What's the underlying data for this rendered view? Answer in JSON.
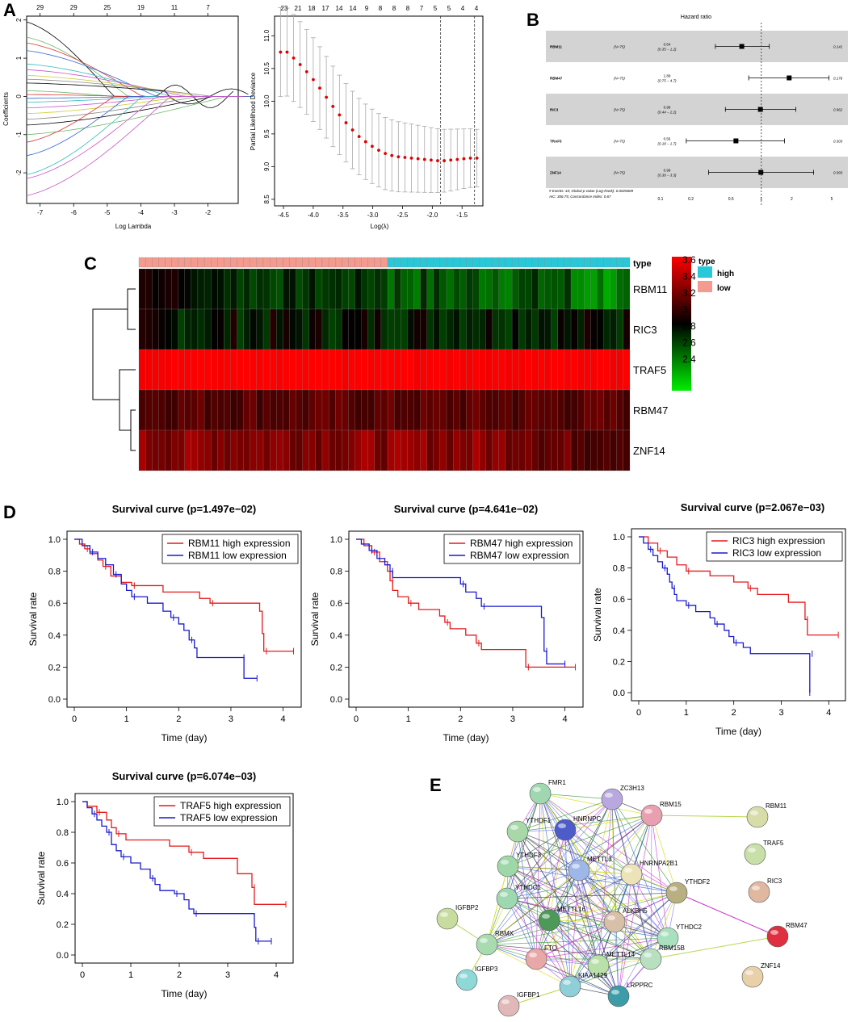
{
  "panel_labels": {
    "a": "A",
    "b": "B",
    "c": "C",
    "d": "D",
    "e": "E"
  },
  "colors": {
    "red": "#e41a1c",
    "blue": "#1a1ad0",
    "high": "#28c8d8",
    "low": "#f49a8e",
    "heat_high": "#ff0000",
    "heat_low": "#00e000",
    "grey_band": "#d3d3d3"
  },
  "panel_a": {
    "coef_plot": {
      "xlabel": "Log Lambda",
      "ylabel": "Coefficients",
      "x_ticks": [
        "-7",
        "-6",
        "-5",
        "-4",
        "-3",
        "-2"
      ],
      "y_ticks": [
        "-2",
        "-1",
        "0",
        "1",
        "2"
      ],
      "top_ticks": [
        "29",
        "29",
        "25",
        "19",
        "11",
        "7"
      ]
    },
    "cv_plot": {
      "xlabel": "Log(λ)",
      "ylabel": "Partial Likelihood Deviance",
      "x_ticks": [
        "-4.5",
        "-4.0",
        "-3.5",
        "-3.0",
        "-2.5",
        "-2.0",
        "-1.5"
      ],
      "y_ticks": [
        "8.5",
        "9.0",
        "9.5",
        "10.0",
        "10.5",
        "11.0"
      ],
      "top_ticks": [
        "23",
        "21",
        "18",
        "17",
        "14",
        "14",
        "9",
        "8",
        "8",
        "8",
        "7",
        "5",
        "5",
        "4",
        "4"
      ],
      "lambda_min": -1.86,
      "lambda_1se": -1.29,
      "points": [
        [
          -4.55,
          10.75
        ],
        [
          -4.44,
          10.75
        ],
        [
          -4.33,
          10.66
        ],
        [
          -4.22,
          10.56
        ],
        [
          -4.11,
          10.45
        ],
        [
          -4.0,
          10.33
        ],
        [
          -3.89,
          10.2
        ],
        [
          -3.78,
          10.06
        ],
        [
          -3.67,
          9.92
        ],
        [
          -3.56,
          9.79
        ],
        [
          -3.45,
          9.67
        ],
        [
          -3.34,
          9.56
        ],
        [
          -3.23,
          9.46
        ],
        [
          -3.12,
          9.38
        ],
        [
          -3.01,
          9.31
        ],
        [
          -2.9,
          9.25
        ],
        [
          -2.79,
          9.2
        ],
        [
          -2.68,
          9.17
        ],
        [
          -2.57,
          9.15
        ],
        [
          -2.46,
          9.14
        ],
        [
          -2.35,
          9.13
        ],
        [
          -2.24,
          9.12
        ],
        [
          -2.13,
          9.11
        ],
        [
          -2.02,
          9.1
        ],
        [
          -1.91,
          9.09
        ],
        [
          -1.8,
          9.09
        ],
        [
          -1.69,
          9.1
        ],
        [
          -1.58,
          9.11
        ],
        [
          -1.47,
          9.12
        ],
        [
          -1.36,
          9.13
        ],
        [
          -1.25,
          9.13
        ]
      ]
    }
  },
  "panel_b": {
    "title": "Hazard ratio",
    "rows": [
      {
        "gene": "RBM11",
        "n": "(N=75)",
        "hr": "0.64",
        "ci": "(0.35 – 1.2)",
        "p": "0.141",
        "est": 0.64,
        "lo": 0.35,
        "hi": 1.2
      },
      {
        "gene": "RBM47",
        "n": "(N=75)",
        "hr": "1.89",
        "ci": "(0.75 – 4.7)",
        "p": "0.176",
        "est": 1.89,
        "lo": 0.75,
        "hi": 4.7
      },
      {
        "gene": "RIC3",
        "n": "(N=75)",
        "hr": "0.98",
        "ci": "(0.44 – 2.2)",
        "p": "0.962",
        "est": 0.98,
        "lo": 0.44,
        "hi": 2.2
      },
      {
        "gene": "TRAF5",
        "n": "(N=75)",
        "hr": "0.56",
        "ci": "(0.18 – 1.7)",
        "p": "0.303",
        "est": 0.56,
        "lo": 0.18,
        "hi": 1.7
      },
      {
        "gene": "ZNF14",
        "n": "(N=75)",
        "hr": "0.99",
        "ci": "(0.30 – 3.3)",
        "p": "0.993",
        "est": 0.99,
        "lo": 0.3,
        "hi": 3.3
      }
    ],
    "footer1": "# Events: 43; Global p-value (Log-Rank): 0.0025609",
    "footer2": "AIC: 306.75; Concordance Index: 0.67",
    "x_ticks": [
      "0.1",
      "0.2",
      "0.5",
      "1",
      "2",
      "5"
    ]
  },
  "panel_c": {
    "type_label": "type",
    "genes": [
      "RBM11",
      "RIC3",
      "TRAF5",
      "RBM47",
      "ZNF14"
    ],
    "scale_ticks": [
      "3.6",
      "3.4",
      "3.2",
      "3",
      "2.8",
      "2.6",
      "2.4"
    ],
    "legend_title": "type",
    "legend_items": [
      "high",
      "low"
    ]
  },
  "panel_d": {
    "xlabel": "Time (day)",
    "ylabel": "Survival rate",
    "x_ticks": [
      "0",
      "1",
      "2",
      "3",
      "4"
    ],
    "y_ticks": [
      "0.0",
      "0.2",
      "0.4",
      "0.6",
      "0.8",
      "1.0"
    ],
    "plots": [
      {
        "title": "Survival curve (p=1.497e−02)",
        "legend_high": "RBM11 high expression",
        "legend_low": "RBM11 low expression",
        "high": [
          [
            0,
            1
          ],
          [
            0.1,
            0.97
          ],
          [
            0.2,
            0.94
          ],
          [
            0.3,
            0.91
          ],
          [
            0.45,
            0.87
          ],
          [
            0.55,
            0.83
          ],
          [
            0.7,
            0.77
          ],
          [
            0.9,
            0.73
          ],
          [
            1.1,
            0.71
          ],
          [
            1.7,
            0.67
          ],
          [
            2.4,
            0.63
          ],
          [
            2.6,
            0.6
          ],
          [
            3.55,
            0.55
          ],
          [
            3.6,
            0.41
          ],
          [
            3.63,
            0.3
          ],
          [
            4.2,
            0.3
          ]
        ],
        "low": [
          [
            0,
            1
          ],
          [
            0.15,
            0.96
          ],
          [
            0.3,
            0.92
          ],
          [
            0.45,
            0.88
          ],
          [
            0.6,
            0.84
          ],
          [
            0.75,
            0.78
          ],
          [
            0.9,
            0.72
          ],
          [
            1.0,
            0.68
          ],
          [
            1.1,
            0.64
          ],
          [
            1.4,
            0.6
          ],
          [
            1.7,
            0.55
          ],
          [
            1.85,
            0.51
          ],
          [
            2.0,
            0.47
          ],
          [
            2.1,
            0.43
          ],
          [
            2.2,
            0.37
          ],
          [
            2.3,
            0.32
          ],
          [
            2.35,
            0.26
          ],
          [
            3.2,
            0.26
          ],
          [
            3.25,
            0.13
          ],
          [
            3.5,
            0.13
          ]
        ]
      },
      {
        "title": "Survival curve (p=4.641e−02)",
        "legend_high": "RBM47 high expression",
        "legend_low": "RBM47 low expression",
        "high": [
          [
            0,
            1
          ],
          [
            0.15,
            0.96
          ],
          [
            0.3,
            0.92
          ],
          [
            0.45,
            0.86
          ],
          [
            0.6,
            0.8
          ],
          [
            0.65,
            0.74
          ],
          [
            0.7,
            0.68
          ],
          [
            0.8,
            0.64
          ],
          [
            1.0,
            0.6
          ],
          [
            1.2,
            0.56
          ],
          [
            1.6,
            0.52
          ],
          [
            1.7,
            0.48
          ],
          [
            1.8,
            0.44
          ],
          [
            2.1,
            0.4
          ],
          [
            2.3,
            0.35
          ],
          [
            2.4,
            0.31
          ],
          [
            3.2,
            0.31
          ],
          [
            3.25,
            0.2
          ],
          [
            4.2,
            0.2
          ]
        ],
        "low": [
          [
            0,
            1
          ],
          [
            0.1,
            0.97
          ],
          [
            0.25,
            0.93
          ],
          [
            0.4,
            0.88
          ],
          [
            0.55,
            0.84
          ],
          [
            0.65,
            0.8
          ],
          [
            0.7,
            0.76
          ],
          [
            1.9,
            0.76
          ],
          [
            2.0,
            0.72
          ],
          [
            2.1,
            0.67
          ],
          [
            2.3,
            0.63
          ],
          [
            2.4,
            0.58
          ],
          [
            3.5,
            0.58
          ],
          [
            3.55,
            0.51
          ],
          [
            3.6,
            0.3
          ],
          [
            3.65,
            0.22
          ],
          [
            4.0,
            0.22
          ]
        ]
      },
      {
        "title": "Survival curve (p=2.067e−03)",
        "legend_high": "RIC3 high expression",
        "legend_low": "RIC3 low expression",
        "high": [
          [
            0,
            1
          ],
          [
            0.2,
            0.96
          ],
          [
            0.4,
            0.91
          ],
          [
            0.6,
            0.87
          ],
          [
            0.8,
            0.82
          ],
          [
            1.0,
            0.78
          ],
          [
            1.5,
            0.75
          ],
          [
            2.0,
            0.71
          ],
          [
            2.3,
            0.67
          ],
          [
            2.5,
            0.63
          ],
          [
            3.15,
            0.58
          ],
          [
            3.5,
            0.47
          ],
          [
            3.55,
            0.37
          ],
          [
            4.2,
            0.37
          ]
        ],
        "low": [
          [
            0,
            1
          ],
          [
            0.1,
            0.96
          ],
          [
            0.2,
            0.92
          ],
          [
            0.3,
            0.88
          ],
          [
            0.4,
            0.84
          ],
          [
            0.5,
            0.8
          ],
          [
            0.6,
            0.76
          ],
          [
            0.65,
            0.71
          ],
          [
            0.7,
            0.67
          ],
          [
            0.75,
            0.63
          ],
          [
            0.8,
            0.59
          ],
          [
            1.0,
            0.56
          ],
          [
            1.2,
            0.52
          ],
          [
            1.5,
            0.48
          ],
          [
            1.6,
            0.44
          ],
          [
            1.8,
            0.4
          ],
          [
            1.9,
            0.36
          ],
          [
            2.0,
            0.32
          ],
          [
            2.2,
            0.29
          ],
          [
            2.35,
            0.25
          ],
          [
            3.6,
            0.25
          ],
          [
            3.6,
            0.0
          ]
        ]
      },
      {
        "title": "Survival curve (p=6.074e−03)",
        "legend_high": "TRAF5 high expression",
        "legend_low": "TRAF5 low expression",
        "high": [
          [
            0,
            1
          ],
          [
            0.1,
            0.97
          ],
          [
            0.3,
            0.93
          ],
          [
            0.5,
            0.88
          ],
          [
            0.6,
            0.83
          ],
          [
            0.7,
            0.79
          ],
          [
            0.9,
            0.75
          ],
          [
            1.8,
            0.71
          ],
          [
            2.2,
            0.67
          ],
          [
            2.5,
            0.63
          ],
          [
            3.2,
            0.53
          ],
          [
            3.5,
            0.44
          ],
          [
            3.55,
            0.33
          ],
          [
            4.2,
            0.33
          ]
        ],
        "low": [
          [
            0,
            1
          ],
          [
            0.1,
            0.96
          ],
          [
            0.2,
            0.92
          ],
          [
            0.3,
            0.88
          ],
          [
            0.4,
            0.84
          ],
          [
            0.5,
            0.8
          ],
          [
            0.6,
            0.72
          ],
          [
            0.7,
            0.68
          ],
          [
            0.8,
            0.64
          ],
          [
            1.0,
            0.6
          ],
          [
            1.2,
            0.56
          ],
          [
            1.4,
            0.5
          ],
          [
            1.5,
            0.46
          ],
          [
            1.6,
            0.42
          ],
          [
            1.9,
            0.4
          ],
          [
            2.1,
            0.36
          ],
          [
            2.2,
            0.3
          ],
          [
            2.3,
            0.27
          ],
          [
            3.5,
            0.27
          ],
          [
            3.55,
            0.18
          ],
          [
            3.58,
            0.09
          ],
          [
            3.9,
            0.09
          ]
        ]
      }
    ]
  },
  "panel_e": {
    "nodes": [
      {
        "label": "FMR1",
        "color": "#9fd8b0"
      },
      {
        "label": "ZC3H13",
        "color": "#b9a8e0"
      },
      {
        "label": "YTHDF1",
        "color": "#a8d8a8"
      },
      {
        "label": "HNRNPC",
        "color": "#4d5cc9"
      },
      {
        "label": "RBM15",
        "color": "#e8a0b0"
      },
      {
        "label": "YTHDF3",
        "color": "#9ed8a8"
      },
      {
        "label": "METTL3",
        "color": "#9cb7e8"
      },
      {
        "label": "HNRNPA2B1",
        "color": "#ece4b8"
      },
      {
        "label": "YTHDF2",
        "color": "#b8b080"
      },
      {
        "label": "YTHDC1",
        "color": "#9ed8b0"
      },
      {
        "label": "METTL16",
        "color": "#4d9a58"
      },
      {
        "label": "ALKBH5",
        "color": "#d8c0a8"
      },
      {
        "label": "IGFBP2",
        "color": "#c8dca0"
      },
      {
        "label": "YTHDC2",
        "color": "#a8e0c0"
      },
      {
        "label": "RBMX",
        "color": "#a8dcb0"
      },
      {
        "label": "FTO",
        "color": "#e8a8a8"
      },
      {
        "label": "METTL14",
        "color": "#b8e0a8"
      },
      {
        "label": "RBM15B",
        "color": "#b8e0c0"
      },
      {
        "label": "IGFBP3",
        "color": "#8ed8d8"
      },
      {
        "label": "KIAA1429",
        "color": "#8ecfd8"
      },
      {
        "label": "LRPPRC",
        "color": "#3c9ca8"
      },
      {
        "label": "IGFBP1",
        "color": "#e0b8b8"
      },
      {
        "label": "RBM11",
        "color": "#d8dca8"
      },
      {
        "label": "TRAF5",
        "color": "#c8e0a8"
      },
      {
        "label": "RIC3",
        "color": "#e0b8a0"
      },
      {
        "label": "RBM47",
        "color": "#e03040"
      },
      {
        "label": "ZNF14",
        "color": "#e8d0a8"
      }
    ]
  }
}
